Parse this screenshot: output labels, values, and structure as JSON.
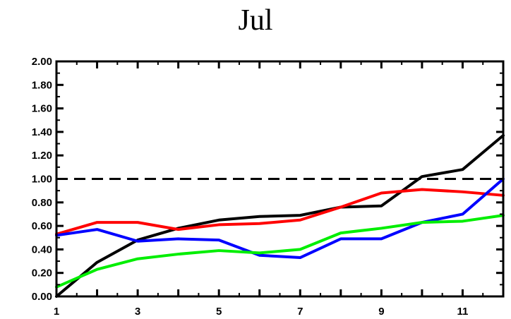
{
  "chart_data": {
    "type": "line",
    "title": "Jul",
    "xlabel": "",
    "ylabel": "",
    "x": [
      1,
      2,
      3,
      4,
      5,
      6,
      7,
      8,
      9,
      10,
      11,
      12
    ],
    "xlim": [
      1,
      12
    ],
    "ylim": [
      0,
      2
    ],
    "x_ticks": [
      1,
      3,
      5,
      7,
      9,
      11
    ],
    "x_tick_labels": [
      "1",
      "3",
      "5",
      "7",
      "9",
      "11"
    ],
    "y_ticks": [
      0,
      0.2,
      0.4,
      0.6,
      0.8,
      1.0,
      1.2,
      1.4,
      1.6,
      1.8,
      2.0
    ],
    "y_tick_labels": [
      "0.00",
      "0.20",
      "0.40",
      "0.60",
      "0.80",
      "1.00",
      "1.20",
      "1.40",
      "1.60",
      "1.80",
      "2.00"
    ],
    "grid": false,
    "reference_line": {
      "y": 1.0,
      "style": "dashed",
      "color": "#000000"
    },
    "series": [
      {
        "color": "#000000",
        "values": [
          0.0,
          0.29,
          0.48,
          0.58,
          0.65,
          0.68,
          0.69,
          0.76,
          0.77,
          1.02,
          1.08,
          1.37
        ]
      },
      {
        "color": "#ff0000",
        "values": [
          0.53,
          0.63,
          0.63,
          0.57,
          0.61,
          0.62,
          0.65,
          0.76,
          0.88,
          0.91,
          0.89,
          0.86
        ]
      },
      {
        "color": "#0000ff",
        "values": [
          0.52,
          0.57,
          0.47,
          0.49,
          0.48,
          0.35,
          0.33,
          0.49,
          0.49,
          0.63,
          0.7,
          1.0
        ]
      },
      {
        "color": "#00ee00",
        "values": [
          0.08,
          0.23,
          0.32,
          0.36,
          0.39,
          0.37,
          0.4,
          0.54,
          0.58,
          0.63,
          0.64,
          0.69
        ]
      }
    ]
  }
}
